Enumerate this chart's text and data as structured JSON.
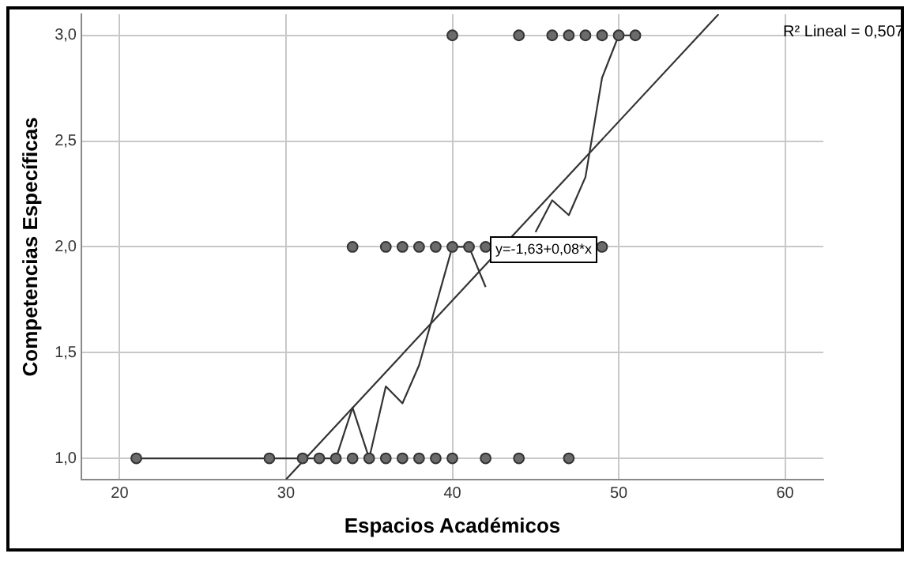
{
  "chart_data": {
    "type": "scatter",
    "xlabel": "Espacios Académicos",
    "ylabel": "Competencias Específicas",
    "xlim": [
      17.7,
      62.3
    ],
    "ylim": [
      0.9,
      3.1
    ],
    "xticks": [
      20,
      30,
      40,
      50,
      60
    ],
    "yticks": [
      {
        "value": 1,
        "label": "1,0"
      },
      {
        "value": 1.5,
        "label": "1,5"
      },
      {
        "value": 2,
        "label": "2,0"
      },
      {
        "value": 2.5,
        "label": "2,5"
      },
      {
        "value": 3,
        "label": "3,0"
      }
    ],
    "grid": true,
    "legend": false,
    "marker": "circle",
    "series": [
      {
        "type": "scatter",
        "color": "#6b6b6b",
        "x": [
          21,
          29,
          31,
          32,
          33,
          34,
          35,
          36,
          37,
          38,
          39,
          40,
          42,
          44,
          47,
          34,
          36,
          37,
          38,
          39,
          40,
          41,
          42,
          49,
          40,
          44,
          46,
          47,
          48,
          49,
          50,
          51
        ],
        "values": [
          1,
          1,
          1,
          1,
          1,
          1,
          1,
          1,
          1,
          1,
          1,
          1,
          1,
          1,
          1,
          2,
          2,
          2,
          2,
          2,
          2,
          2,
          2,
          2,
          3,
          3,
          3,
          3,
          3,
          3,
          3,
          3
        ]
      },
      {
        "type": "line",
        "color": "#333333",
        "marker": "none",
        "x": [
          21,
          29,
          31,
          32,
          33,
          34,
          35,
          36,
          37,
          38,
          40,
          41,
          42,
          43,
          44,
          45,
          46,
          47,
          48,
          49,
          50,
          51
        ],
        "values": [
          1,
          1,
          1,
          1,
          1,
          1.24,
          1,
          1.34,
          1.26,
          1.44,
          2,
          2,
          1.81,
          null,
          null,
          2.07,
          2.22,
          2.15,
          2.33,
          2.8,
          3,
          3
        ]
      },
      {
        "type": "line",
        "color": "#333333",
        "marker": "none",
        "x": [
          30,
          56
        ],
        "values": [
          0.9,
          3.1
        ]
      }
    ],
    "annotations": [
      "R² Lineal = 0,507",
      "y=-1,63+0,08*x"
    ]
  }
}
